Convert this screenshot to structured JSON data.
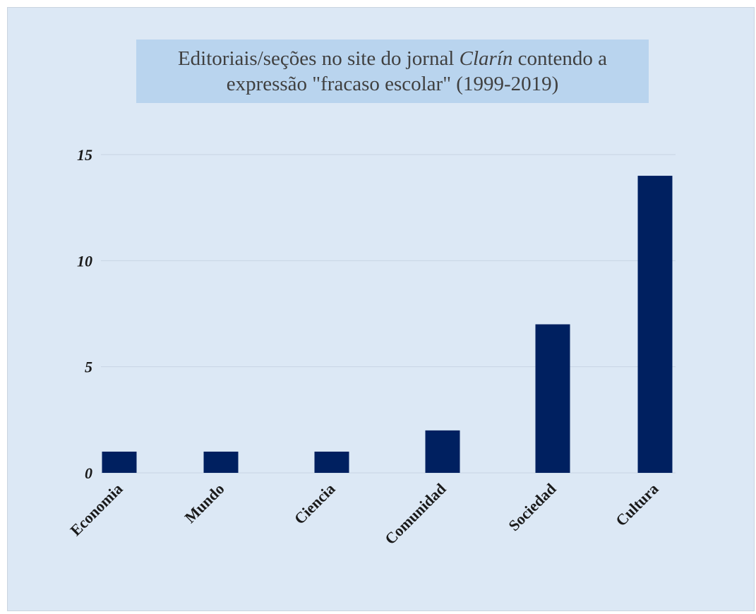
{
  "chart_data": {
    "type": "bar",
    "title_parts": {
      "line1_before": "Editoriais/seções no site do jornal ",
      "line1_italic": "Clarín",
      "line1_after": " contendo a",
      "line2": "expressão \"fracaso escolar\" (1999-2019)"
    },
    "categories": [
      "Economia",
      "Mundo",
      "Ciencia",
      "Comunidad",
      "Sociedad",
      "Cultura"
    ],
    "values": [
      1,
      1,
      1,
      2,
      7,
      14
    ],
    "yticks": [
      0,
      5,
      10,
      15
    ],
    "ylim": [
      0,
      15
    ],
    "grid": true,
    "bar_color": "#002060",
    "legend": "none"
  }
}
